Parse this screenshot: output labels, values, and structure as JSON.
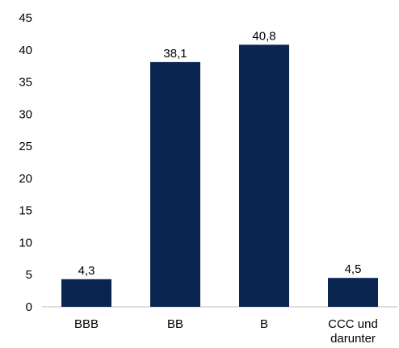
{
  "chart_data": {
    "type": "bar",
    "categories": [
      [
        "BBB"
      ],
      [
        "BB"
      ],
      [
        "B"
      ],
      [
        "CCC und",
        "darunter"
      ]
    ],
    "values": [
      4.3,
      38.1,
      40.8,
      4.5
    ],
    "data_labels": [
      "4,3",
      "38,1",
      "40,8",
      "4,5"
    ],
    "y_ticks": [
      0,
      5,
      10,
      15,
      20,
      25,
      30,
      35,
      40,
      45
    ],
    "ylim": [
      0,
      45
    ],
    "grid": false,
    "legend": "none",
    "colors": {
      "bar": "#0a2550",
      "axis": "#bfbfbf",
      "text": "#000000"
    }
  }
}
